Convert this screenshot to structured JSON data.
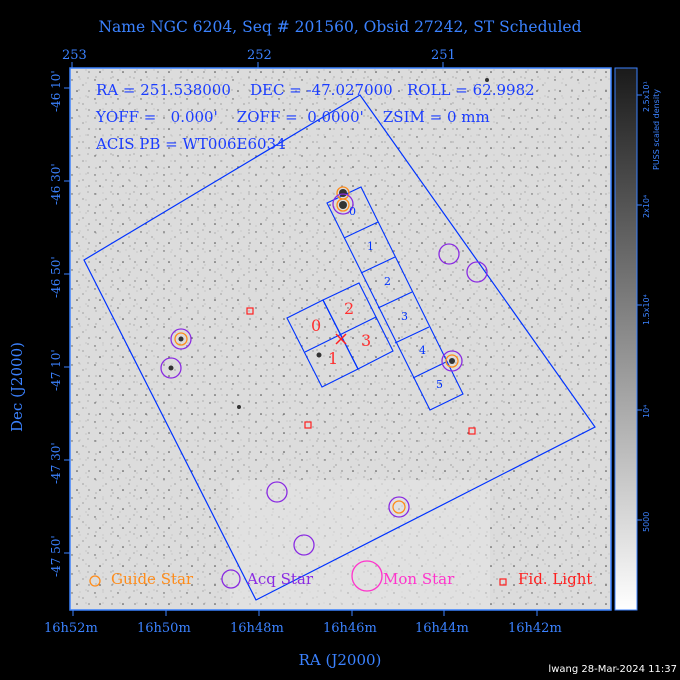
{
  "title": "Name NGC 6204, Seq # 201560, Obsid 27242, ST Scheduled",
  "ra_ticks_top": [
    "253",
    "252",
    "251"
  ],
  "ra_ticks_bottom": [
    "16h52m",
    "16h50m",
    "16h48m",
    "16h46m",
    "16h44m",
    "16h42m"
  ],
  "dec_ticks": [
    "-46 10'",
    "-46 30'",
    "-46 50'",
    "-47 10'",
    "-47 30'",
    "-47 50'"
  ],
  "x_axis_label": "RA (J2000)",
  "y_axis_label": "Dec (J2000)",
  "info": {
    "line1": "RA = 251.538000    DEC = -47.027000   ROLL = 62.9982",
    "line2": "YOFF =   0.000'    ZOFF =  0.0000'    ZSIM = 0 mm",
    "line3": "ACIS PB = WT006E6034"
  },
  "ccd_labels": [
    "0",
    "1",
    "2",
    "3",
    "4",
    "5"
  ],
  "acis_i_labels": [
    "0",
    "1",
    "2",
    "3"
  ],
  "legend": {
    "guide": "Guide Star",
    "acq": "Acq Star",
    "mon": "Mon Star",
    "fid": "Fid. Light"
  },
  "colorbar": {
    "title": "PUSS scaled density",
    "ticks": [
      "2.5x10¹",
      "2x10⁴",
      "1.5x10⁴",
      "10⁴",
      "5000"
    ]
  },
  "footer": "lwang 28-Mar-2024 11:37",
  "colors": {
    "axis": "#3b82ff",
    "guide": "#ff8c1a",
    "acq": "#8a2be2",
    "mon": "#ff33cc",
    "fid": "#ff2020",
    "field": "#0033ff"
  }
}
